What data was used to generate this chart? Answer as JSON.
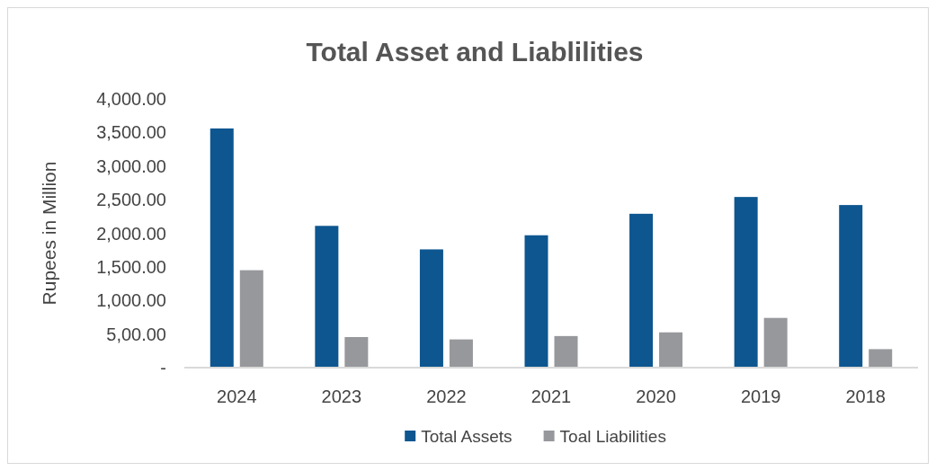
{
  "chart_data": {
    "type": "bar",
    "title": "Total Asset and Liablilities",
    "ylabel": "Rupees in Million",
    "categories": [
      "2024",
      "2023",
      "2022",
      "2021",
      "2020",
      "2019",
      "2018"
    ],
    "series": [
      {
        "name": "Total Assets",
        "color": "#0d5690",
        "values": [
          3560,
          2110,
          1760,
          1970,
          2290,
          2540,
          2420
        ]
      },
      {
        "name": "Toal Liabilities",
        "color": "#97989c",
        "values": [
          1450,
          455,
          420,
          470,
          525,
          740,
          275
        ]
      }
    ],
    "ylim": [
      0,
      4000
    ],
    "yticks": [
      {
        "value": 0,
        "label": "-"
      },
      {
        "value": 500,
        "label": "5,00.00"
      },
      {
        "value": 1000,
        "label": "1,000.00"
      },
      {
        "value": 1500,
        "label": "1,500.00"
      },
      {
        "value": 2000,
        "label": "2,000.00"
      },
      {
        "value": 2500,
        "label": "2,500.00"
      },
      {
        "value": 3000,
        "label": "3,000.00"
      },
      {
        "value": 3500,
        "label": "3,500.00"
      },
      {
        "value": 4000,
        "label": "4,000.00"
      }
    ],
    "grid": false,
    "legend": "bottom"
  }
}
